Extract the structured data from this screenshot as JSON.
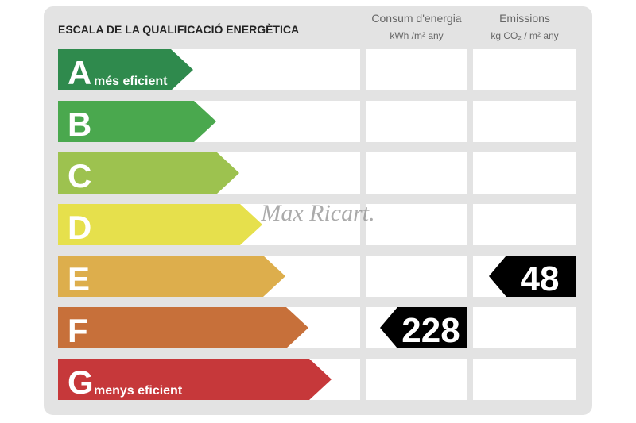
{
  "title": "ESCALA DE LA QUALIFICACIÓ ENERGÈTICA",
  "ratings": [
    {
      "letter": "A",
      "label": "més eficient",
      "color": "#2f8a4d"
    },
    {
      "letter": "B",
      "color": "#4aa84e"
    },
    {
      "letter": "C",
      "color": "#9dc24f"
    },
    {
      "letter": "D",
      "color": "#e6e04c"
    },
    {
      "letter": "E",
      "color": "#ddae4c"
    },
    {
      "letter": "F",
      "color": "#c7703a"
    },
    {
      "letter": "G",
      "label": "menys eficient",
      "color": "#c6383a"
    }
  ],
  "columns": [
    {
      "title": "Consum d'energia",
      "unit": "kWh /m² any",
      "rating": "F",
      "value": 228
    },
    {
      "title": "Emissions",
      "unit": "kg CO₂ / m² any",
      "rating": "E",
      "value": 48
    }
  ],
  "watermark": "Max Ricart."
}
